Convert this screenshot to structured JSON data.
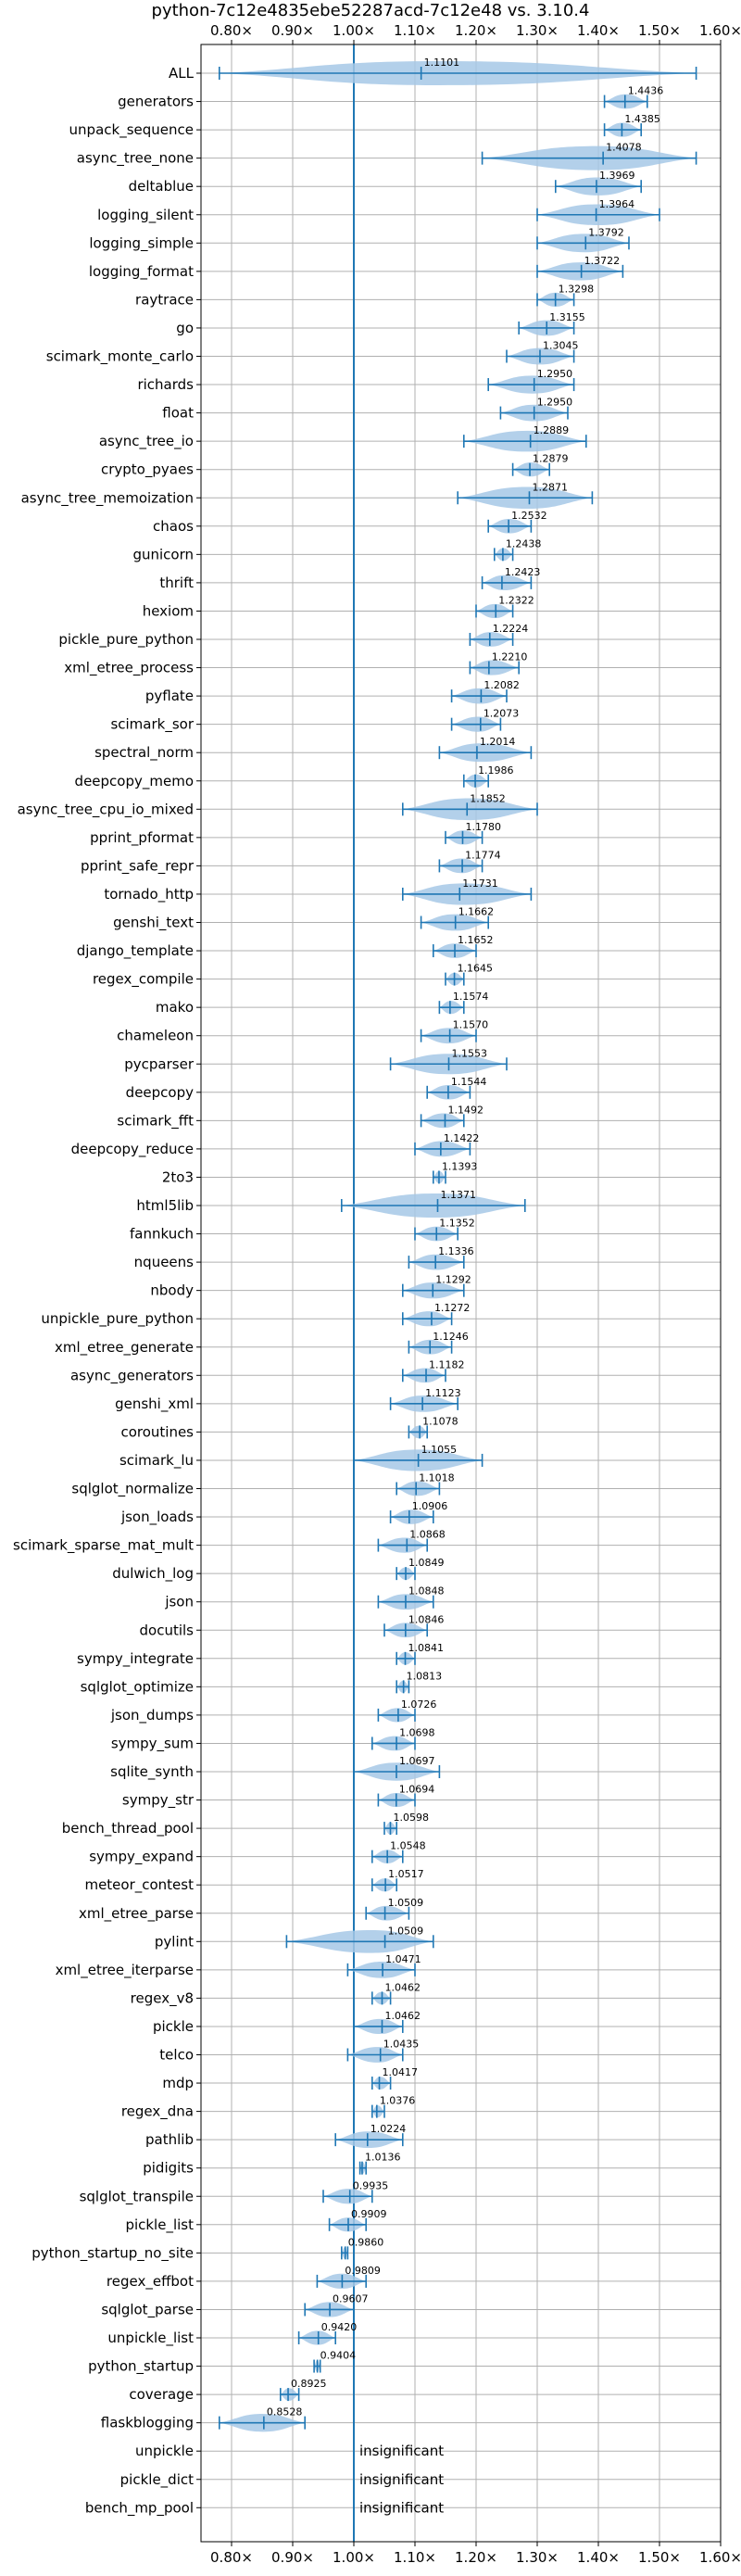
{
  "chart_data": {
    "type": "violin",
    "title": "python-7c12e4835ebe52287acd-7c12e48 vs. 3.10.4",
    "xlim": [
      0.75,
      1.6
    ],
    "xticks": [
      0.8,
      0.9,
      1.0,
      1.1,
      1.2,
      1.3,
      1.4,
      1.5,
      1.6
    ],
    "xtick_labels": [
      "0.80×",
      "0.90×",
      "1.00×",
      "1.10×",
      "1.20×",
      "1.30×",
      "1.40×",
      "1.50×",
      "1.60×"
    ],
    "reference_line": 1.0,
    "grid": true,
    "colors": {
      "violin": "#a6c8e6",
      "line": "#1f77b4",
      "grid": "#b0b0b0"
    },
    "insignificant_label": "insignificant",
    "benchmarks": [
      {
        "name": "ALL",
        "value": 1.1101,
        "min": 0.78,
        "max": 1.56
      },
      {
        "name": "generators",
        "value": 1.4436,
        "min": 1.41,
        "max": 1.48
      },
      {
        "name": "unpack_sequence",
        "value": 1.4385,
        "min": 1.41,
        "max": 1.47
      },
      {
        "name": "async_tree_none",
        "value": 1.4078,
        "min": 1.21,
        "max": 1.56
      },
      {
        "name": "deltablue",
        "value": 1.3969,
        "min": 1.33,
        "max": 1.47
      },
      {
        "name": "logging_silent",
        "value": 1.3964,
        "min": 1.3,
        "max": 1.5
      },
      {
        "name": "logging_simple",
        "value": 1.3792,
        "min": 1.3,
        "max": 1.45
      },
      {
        "name": "logging_format",
        "value": 1.3722,
        "min": 1.3,
        "max": 1.44
      },
      {
        "name": "raytrace",
        "value": 1.3298,
        "min": 1.3,
        "max": 1.36
      },
      {
        "name": "go",
        "value": 1.3155,
        "min": 1.27,
        "max": 1.36
      },
      {
        "name": "scimark_monte_carlo",
        "value": 1.3045,
        "min": 1.25,
        "max": 1.36
      },
      {
        "name": "richards",
        "value": 1.295,
        "min": 1.22,
        "max": 1.36
      },
      {
        "name": "float",
        "value": 1.295,
        "min": 1.24,
        "max": 1.35
      },
      {
        "name": "async_tree_io",
        "value": 1.2889,
        "min": 1.18,
        "max": 1.38
      },
      {
        "name": "crypto_pyaes",
        "value": 1.2879,
        "min": 1.26,
        "max": 1.32
      },
      {
        "name": "async_tree_memoization",
        "value": 1.2871,
        "min": 1.17,
        "max": 1.39
      },
      {
        "name": "chaos",
        "value": 1.2532,
        "min": 1.22,
        "max": 1.29
      },
      {
        "name": "gunicorn",
        "value": 1.2438,
        "min": 1.23,
        "max": 1.26
      },
      {
        "name": "thrift",
        "value": 1.2423,
        "min": 1.21,
        "max": 1.29
      },
      {
        "name": "hexiom",
        "value": 1.2322,
        "min": 1.2,
        "max": 1.26
      },
      {
        "name": "pickle_pure_python",
        "value": 1.2224,
        "min": 1.19,
        "max": 1.26
      },
      {
        "name": "xml_etree_process",
        "value": 1.221,
        "min": 1.19,
        "max": 1.27
      },
      {
        "name": "pyflate",
        "value": 1.2082,
        "min": 1.16,
        "max": 1.25
      },
      {
        "name": "scimark_sor",
        "value": 1.2073,
        "min": 1.16,
        "max": 1.24
      },
      {
        "name": "spectral_norm",
        "value": 1.2014,
        "min": 1.14,
        "max": 1.29
      },
      {
        "name": "deepcopy_memo",
        "value": 1.1986,
        "min": 1.18,
        "max": 1.22
      },
      {
        "name": "async_tree_cpu_io_mixed",
        "value": 1.1852,
        "min": 1.08,
        "max": 1.3
      },
      {
        "name": "pprint_pformat",
        "value": 1.178,
        "min": 1.15,
        "max": 1.21
      },
      {
        "name": "pprint_safe_repr",
        "value": 1.1774,
        "min": 1.14,
        "max": 1.21
      },
      {
        "name": "tornado_http",
        "value": 1.1731,
        "min": 1.08,
        "max": 1.29
      },
      {
        "name": "genshi_text",
        "value": 1.1662,
        "min": 1.11,
        "max": 1.22
      },
      {
        "name": "django_template",
        "value": 1.1652,
        "min": 1.13,
        "max": 1.2
      },
      {
        "name": "regex_compile",
        "value": 1.1645,
        "min": 1.15,
        "max": 1.18
      },
      {
        "name": "mako",
        "value": 1.1574,
        "min": 1.14,
        "max": 1.18
      },
      {
        "name": "chameleon",
        "value": 1.157,
        "min": 1.11,
        "max": 1.2
      },
      {
        "name": "pycparser",
        "value": 1.1553,
        "min": 1.06,
        "max": 1.25
      },
      {
        "name": "deepcopy",
        "value": 1.1544,
        "min": 1.12,
        "max": 1.19
      },
      {
        "name": "scimark_fft",
        "value": 1.1492,
        "min": 1.11,
        "max": 1.18
      },
      {
        "name": "deepcopy_reduce",
        "value": 1.1422,
        "min": 1.1,
        "max": 1.19
      },
      {
        "name": "2to3",
        "value": 1.1393,
        "min": 1.13,
        "max": 1.15
      },
      {
        "name": "html5lib",
        "value": 1.1371,
        "min": 0.98,
        "max": 1.28
      },
      {
        "name": "fannkuch",
        "value": 1.1352,
        "min": 1.1,
        "max": 1.17
      },
      {
        "name": "nqueens",
        "value": 1.1336,
        "min": 1.09,
        "max": 1.18
      },
      {
        "name": "nbody",
        "value": 1.1292,
        "min": 1.08,
        "max": 1.18
      },
      {
        "name": "unpickle_pure_python",
        "value": 1.1272,
        "min": 1.08,
        "max": 1.16
      },
      {
        "name": "xml_etree_generate",
        "value": 1.1246,
        "min": 1.09,
        "max": 1.16
      },
      {
        "name": "async_generators",
        "value": 1.1182,
        "min": 1.08,
        "max": 1.15
      },
      {
        "name": "genshi_xml",
        "value": 1.1123,
        "min": 1.06,
        "max": 1.17
      },
      {
        "name": "coroutines",
        "value": 1.1078,
        "min": 1.09,
        "max": 1.12
      },
      {
        "name": "scimark_lu",
        "value": 1.1055,
        "min": 1.0,
        "max": 1.21
      },
      {
        "name": "sqlglot_normalize",
        "value": 1.1018,
        "min": 1.07,
        "max": 1.14
      },
      {
        "name": "json_loads",
        "value": 1.0906,
        "min": 1.06,
        "max": 1.13
      },
      {
        "name": "scimark_sparse_mat_mult",
        "value": 1.0868,
        "min": 1.04,
        "max": 1.12
      },
      {
        "name": "dulwich_log",
        "value": 1.0849,
        "min": 1.07,
        "max": 1.1
      },
      {
        "name": "json",
        "value": 1.0848,
        "min": 1.04,
        "max": 1.13
      },
      {
        "name": "docutils",
        "value": 1.0846,
        "min": 1.05,
        "max": 1.12
      },
      {
        "name": "sympy_integrate",
        "value": 1.0841,
        "min": 1.07,
        "max": 1.1
      },
      {
        "name": "sqlglot_optimize",
        "value": 1.0813,
        "min": 1.07,
        "max": 1.09
      },
      {
        "name": "json_dumps",
        "value": 1.0726,
        "min": 1.04,
        "max": 1.1
      },
      {
        "name": "sympy_sum",
        "value": 1.0698,
        "min": 1.03,
        "max": 1.1
      },
      {
        "name": "sqlite_synth",
        "value": 1.0697,
        "min": 1.0,
        "max": 1.14
      },
      {
        "name": "sympy_str",
        "value": 1.0694,
        "min": 1.04,
        "max": 1.1
      },
      {
        "name": "bench_thread_pool",
        "value": 1.0598,
        "min": 1.05,
        "max": 1.07
      },
      {
        "name": "sympy_expand",
        "value": 1.0548,
        "min": 1.03,
        "max": 1.08
      },
      {
        "name": "meteor_contest",
        "value": 1.0517,
        "min": 1.03,
        "max": 1.07
      },
      {
        "name": "xml_etree_parse",
        "value": 1.0509,
        "min": 1.02,
        "max": 1.09
      },
      {
        "name": "pylint",
        "value": 1.0509,
        "min": 0.89,
        "max": 1.13
      },
      {
        "name": "xml_etree_iterparse",
        "value": 1.0471,
        "min": 0.99,
        "max": 1.1
      },
      {
        "name": "regex_v8",
        "value": 1.0462,
        "min": 1.03,
        "max": 1.06
      },
      {
        "name": "pickle",
        "value": 1.0462,
        "min": 1.0,
        "max": 1.08
      },
      {
        "name": "telco",
        "value": 1.0435,
        "min": 0.99,
        "max": 1.08
      },
      {
        "name": "mdp",
        "value": 1.0417,
        "min": 1.03,
        "max": 1.06
      },
      {
        "name": "regex_dna",
        "value": 1.0376,
        "min": 1.03,
        "max": 1.05
      },
      {
        "name": "pathlib",
        "value": 1.0224,
        "min": 0.97,
        "max": 1.08
      },
      {
        "name": "pidigits",
        "value": 1.0136,
        "min": 1.01,
        "max": 1.02
      },
      {
        "name": "sqlglot_transpile",
        "value": 0.9935,
        "min": 0.95,
        "max": 1.03
      },
      {
        "name": "pickle_list",
        "value": 0.9909,
        "min": 0.96,
        "max": 1.02
      },
      {
        "name": "python_startup_no_site",
        "value": 0.986,
        "min": 0.98,
        "max": 0.99
      },
      {
        "name": "regex_effbot",
        "value": 0.9809,
        "min": 0.94,
        "max": 1.02
      },
      {
        "name": "sqlglot_parse",
        "value": 0.9607,
        "min": 0.92,
        "max": 1.0
      },
      {
        "name": "unpickle_list",
        "value": 0.942,
        "min": 0.91,
        "max": 0.97
      },
      {
        "name": "python_startup",
        "value": 0.9404,
        "min": 0.935,
        "max": 0.945
      },
      {
        "name": "coverage",
        "value": 0.8925,
        "min": 0.88,
        "max": 0.91
      },
      {
        "name": "flaskblogging",
        "value": 0.8528,
        "min": 0.78,
        "max": 0.92
      },
      {
        "name": "unpickle",
        "value": null,
        "min": null,
        "max": null
      },
      {
        "name": "pickle_dict",
        "value": null,
        "min": null,
        "max": null
      },
      {
        "name": "bench_mp_pool",
        "value": null,
        "min": null,
        "max": null
      }
    ]
  }
}
